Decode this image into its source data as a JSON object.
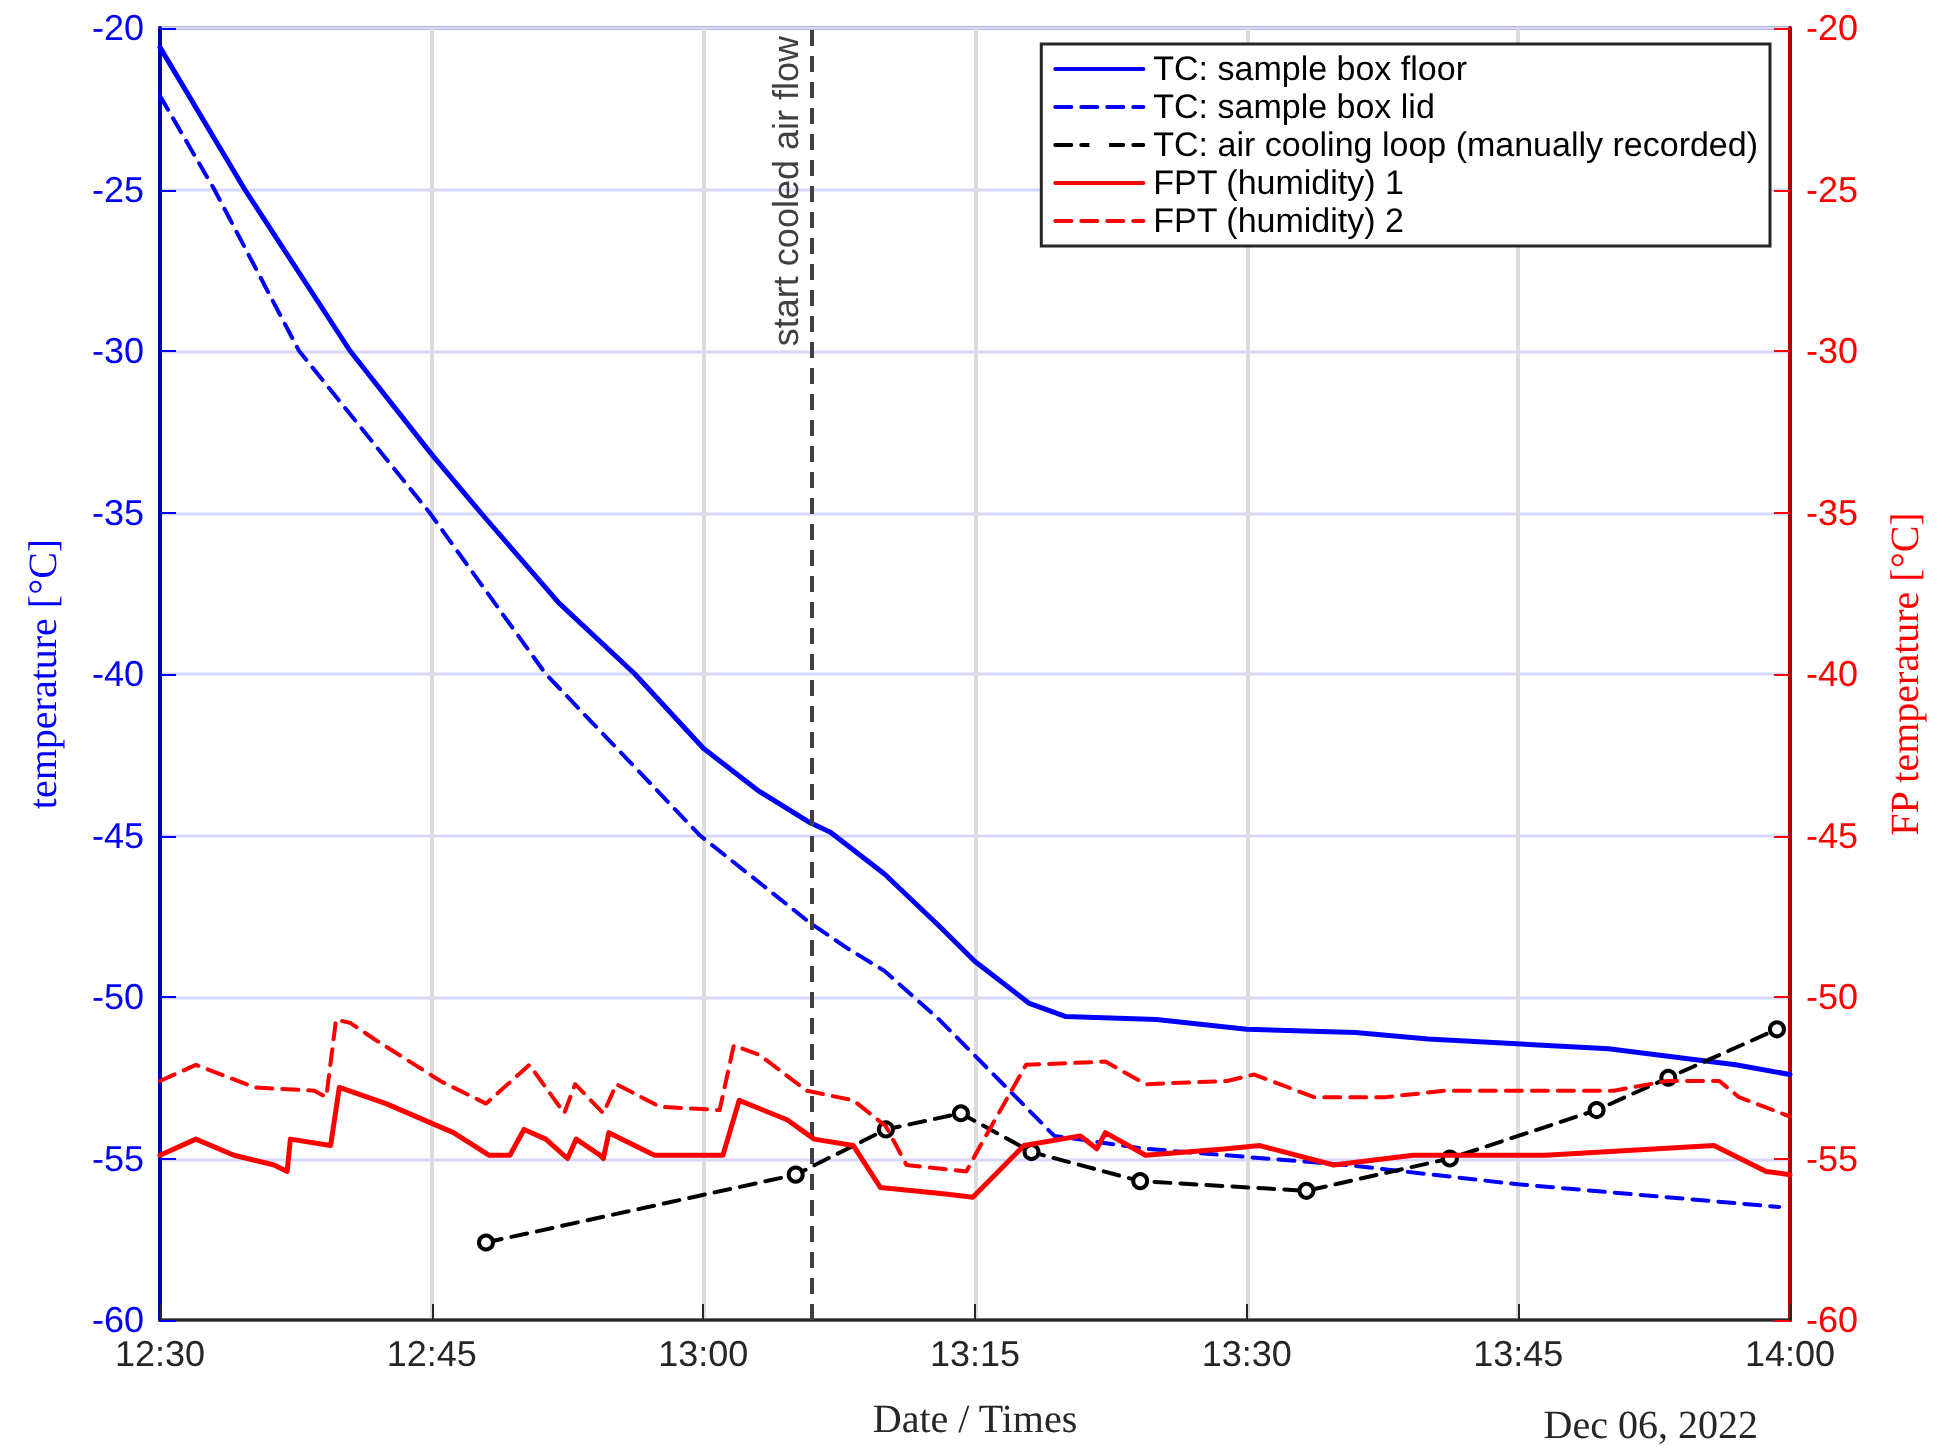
{
  "chart_data": {
    "type": "line",
    "xlabel": "Date / Times",
    "ylabel": "temperature [°C]",
    "y2label": "FP temperature [°C]",
    "xlim": [
      12.5,
      14
    ],
    "xticks": [
      {
        "value": 12.5,
        "label": "12:30"
      },
      {
        "value": 12.75,
        "label": "12:45"
      },
      {
        "value": 13,
        "label": "13:00"
      },
      {
        "value": 13.25,
        "label": "13:15"
      },
      {
        "value": 13.5,
        "label": "13:30"
      },
      {
        "value": 13.75,
        "label": "13:45"
      },
      {
        "value": 14,
        "label": "14:00"
      }
    ],
    "ylim": [
      -60,
      -20
    ],
    "yticks": [
      -60,
      -55,
      -50,
      -45,
      -40,
      -35,
      -30,
      -25,
      -20
    ],
    "y2lim": [
      -60,
      -20
    ],
    "y2ticks": [
      -60,
      -55,
      -50,
      -45,
      -40,
      -35,
      -30,
      -25,
      -20
    ],
    "grid": true,
    "legend": "top right",
    "annotations": [
      "Dec 06, 2022"
    ],
    "ref_lines": [
      {
        "axis": "x",
        "value": 13.1,
        "label": "start cooled air flow",
        "color": "#404040",
        "line_style": "dashed"
      }
    ],
    "series": [
      {
        "name": "TC: sample box floor",
        "color": "#0000ff",
        "line_style": "solid",
        "marker": "none",
        "x": [
          12.5,
          12.578,
          12.675,
          12.75,
          12.795,
          12.867,
          12.937,
          13.0,
          13.05,
          13.098,
          13.117,
          13.167,
          13.217,
          13.25,
          13.3,
          13.333,
          13.417,
          13.5,
          13.6,
          13.667,
          13.833,
          13.95,
          14.0
        ],
        "values": [
          -20.6,
          -25,
          -30,
          -33.2,
          -35,
          -37.8,
          -40,
          -42.3,
          -43.6,
          -44.6,
          -44.9,
          -46.2,
          -47.8,
          -48.9,
          -50.2,
          -50.6,
          -50.7,
          -51.0,
          -51.1,
          -51.3,
          -51.6,
          -52.1,
          -52.4
        ]
      },
      {
        "name": "TC: sample box lid",
        "color": "#0000ff",
        "line_style": "dashed",
        "marker": "none",
        "x": [
          12.5,
          12.55,
          12.628,
          12.748,
          12.855,
          12.997,
          13.098,
          13.133,
          13.167,
          13.217,
          13.273,
          13.323,
          13.407,
          13.592,
          13.75,
          13.99
        ],
        "values": [
          -22.1,
          -25,
          -30,
          -35,
          -40,
          -45,
          -47.7,
          -48.5,
          -49.2,
          -50.7,
          -52.6,
          -54.3,
          -54.7,
          -55.2,
          -55.8,
          -56.5
        ]
      },
      {
        "name": "TC: air cooling loop (manually recorded)",
        "color": "#000000",
        "line_style": "dashed",
        "marker": "circle",
        "x": [
          12.8,
          13.085,
          13.168,
          13.237,
          13.302,
          13.402,
          13.555,
          13.687,
          13.822,
          13.888,
          13.988
        ],
        "values": [
          -57.6,
          -55.5,
          -54.1,
          -53.6,
          -54.8,
          -55.7,
          -56.0,
          -55.0,
          -53.5,
          -52.5,
          -51.0
        ]
      },
      {
        "name": "FPT (humidity) 1",
        "color": "#ff0000",
        "line_style": "solid",
        "marker": "none",
        "axis": "y2",
        "x": [
          12.5,
          12.533,
          12.568,
          12.605,
          12.617,
          12.62,
          12.657,
          12.665,
          12.708,
          12.77,
          12.803,
          12.822,
          12.835,
          12.855,
          12.875,
          12.883,
          12.905,
          12.908,
          12.913,
          12.955,
          13.018,
          13.033,
          13.077,
          13.102,
          13.138,
          13.163,
          13.223,
          13.248,
          13.295,
          13.347,
          13.362,
          13.37,
          13.407,
          13.482,
          13.512,
          13.58,
          13.653,
          13.775,
          13.93,
          13.978,
          14.0
        ],
        "values": [
          -54.9,
          -54.4,
          -54.9,
          -55.2,
          -55.4,
          -54.4,
          -54.6,
          -52.8,
          -53.3,
          -54.2,
          -54.9,
          -54.9,
          -54.1,
          -54.4,
          -55.0,
          -54.4,
          -54.9,
          -55.0,
          -54.2,
          -54.9,
          -54.9,
          -53.2,
          -53.8,
          -54.4,
          -54.6,
          -55.9,
          -56.1,
          -56.2,
          -54.6,
          -54.3,
          -54.7,
          -54.2,
          -54.9,
          -54.7,
          -54.6,
          -55.2,
          -54.9,
          -54.9,
          -54.6,
          -55.4,
          -55.5
        ]
      },
      {
        "name": "FPT (humidity) 2",
        "color": "#ff0000",
        "line_style": "dashed",
        "marker": "none",
        "axis": "y2",
        "x": [
          12.5,
          12.533,
          12.587,
          12.642,
          12.653,
          12.662,
          12.675,
          12.697,
          12.758,
          12.8,
          12.84,
          12.872,
          12.882,
          12.908,
          12.92,
          12.96,
          13.015,
          13.028,
          13.052,
          13.095,
          13.138,
          13.168,
          13.187,
          13.242,
          13.255,
          13.297,
          13.37,
          13.407,
          13.482,
          13.507,
          13.562,
          13.628,
          13.683,
          13.838,
          13.887,
          13.935,
          13.953,
          14.0
        ],
        "values": [
          -52.6,
          -52.1,
          -52.8,
          -52.9,
          -53.1,
          -50.7,
          -50.8,
          -51.3,
          -52.6,
          -53.3,
          -52.1,
          -53.6,
          -52.7,
          -53.6,
          -52.7,
          -53.4,
          -53.5,
          -51.5,
          -51.8,
          -52.9,
          -53.2,
          -54.0,
          -55.2,
          -55.4,
          -54.6,
          -52.1,
          -52.0,
          -52.7,
          -52.6,
          -52.4,
          -53.1,
          -53.1,
          -52.9,
          -52.9,
          -52.6,
          -52.6,
          -53.1,
          -53.7
        ]
      }
    ]
  }
}
